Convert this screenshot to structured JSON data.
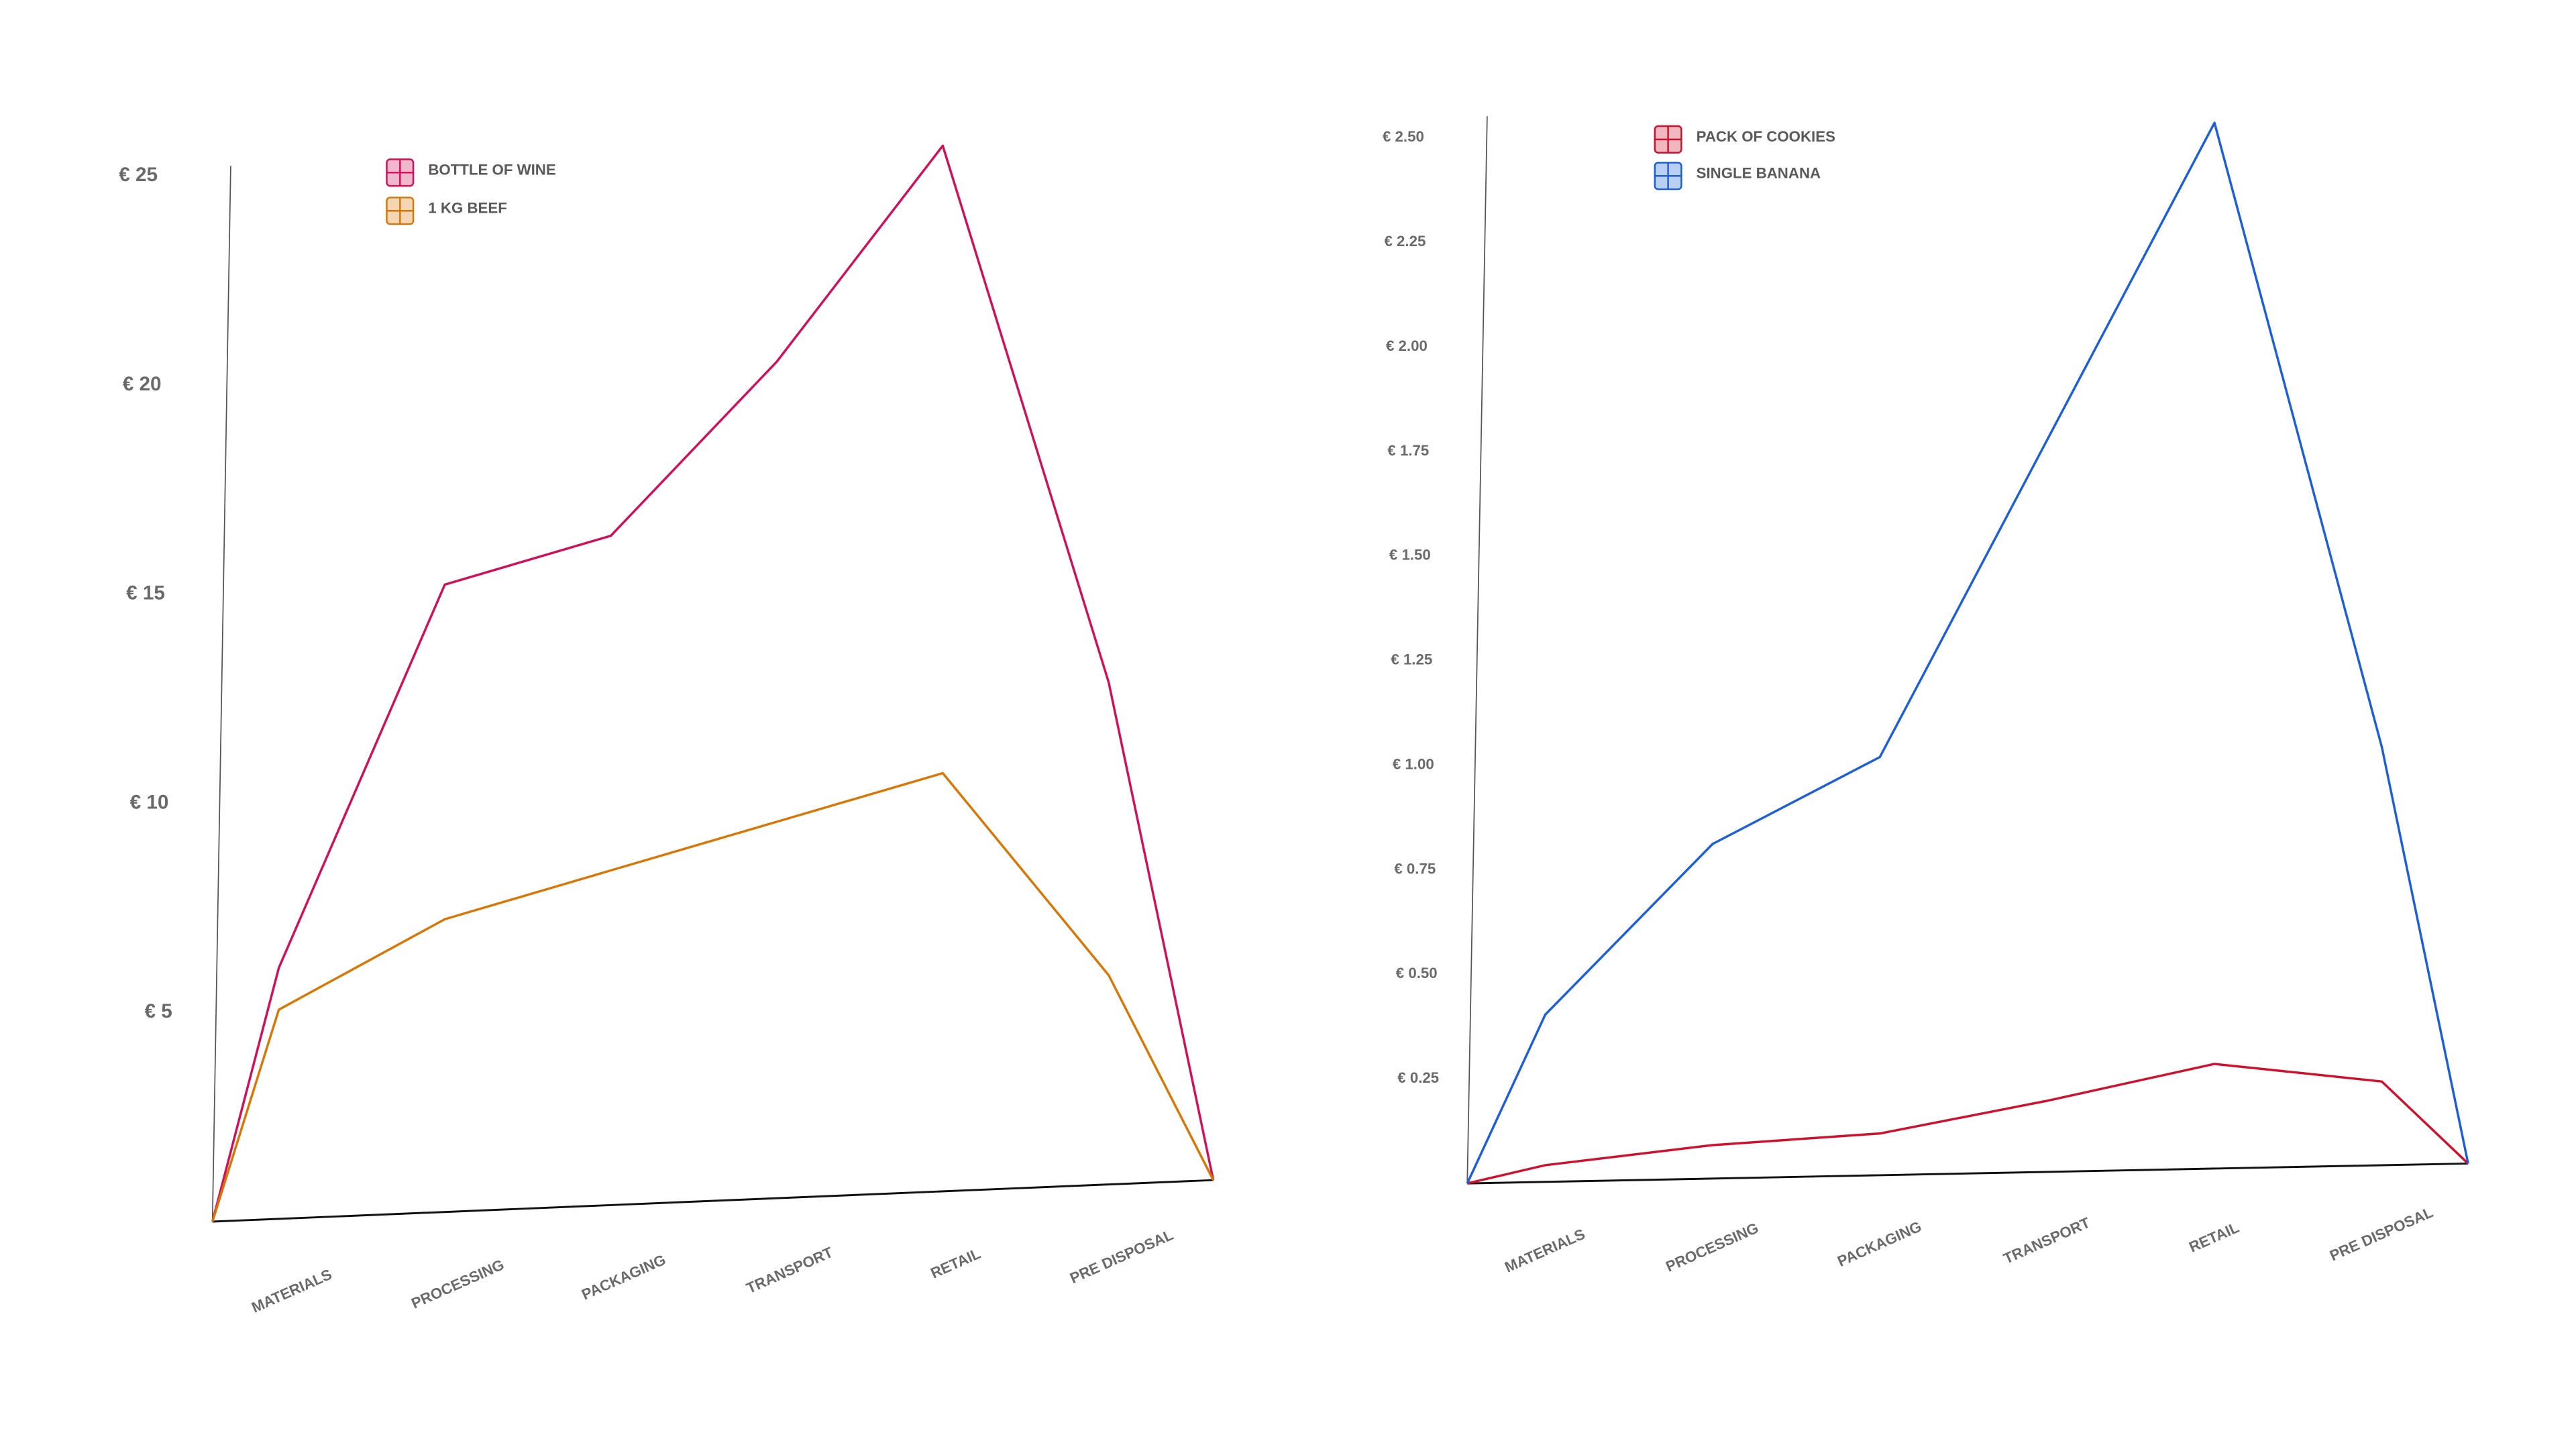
{
  "chart_data": [
    {
      "type": "line",
      "categories": [
        null,
        "MATERIALS",
        "PROCESSING",
        "PACKAGING",
        "TRANSPORT",
        "RETAIL",
        "PRE DISPOSAL",
        null
      ],
      "series": [
        {
          "name": "BOTTLE OF WINE",
          "color": "#d1105a",
          "values": [
            0,
            6,
            15,
            16,
            20,
            25,
            12,
            0
          ]
        },
        {
          "name": "1 KG BEEF",
          "color": "#d97706",
          "values": [
            0,
            5,
            7,
            8,
            9,
            10,
            5,
            0
          ]
        }
      ],
      "ylim": [
        0,
        25
      ],
      "yticks": [
        {
          "value": 5,
          "label": "€ 5"
        },
        {
          "value": 10,
          "label": "€ 10"
        },
        {
          "value": 15,
          "label": "€ 15"
        },
        {
          "value": 20,
          "label": "€ 20"
        },
        {
          "value": 25,
          "label": "€ 25"
        }
      ],
      "grid": false,
      "legend": "top-left"
    },
    {
      "type": "line",
      "categories": [
        null,
        "MATERIALS",
        "PROCESSING",
        "PACKAGING",
        "TRANSPORT",
        "RETAIL",
        "PRE DISPOSAL",
        null
      ],
      "series": [
        {
          "name": "PACK OF COOKIES",
          "color": "#d0102c",
          "values": [
            0,
            0.04,
            0.08,
            0.1,
            0.17,
            0.25,
            0.2,
            0
          ]
        },
        {
          "name": "SINGLE BANANA",
          "color": "#1c5fd9",
          "values": [
            0,
            0.4,
            0.8,
            1.0,
            1.75,
            2.5,
            1.0,
            0
          ]
        }
      ],
      "ylim": [
        0,
        2.5
      ],
      "yticks": [
        {
          "value": 0.25,
          "label": "€ 0.25"
        },
        {
          "value": 0.5,
          "label": "€ 0.50"
        },
        {
          "value": 0.75,
          "label": "€ 0.75"
        },
        {
          "value": 1.0,
          "label": "€ 1.00"
        },
        {
          "value": 1.25,
          "label": "€ 1.25"
        },
        {
          "value": 1.5,
          "label": "€ 1.50"
        },
        {
          "value": 1.75,
          "label": "€ 1.75"
        },
        {
          "value": 2.0,
          "label": "€ 2.00"
        },
        {
          "value": 2.25,
          "label": "€ 2.25"
        },
        {
          "value": 2.5,
          "label": "€ 2.50"
        }
      ],
      "grid": false,
      "legend": "top-left"
    }
  ]
}
